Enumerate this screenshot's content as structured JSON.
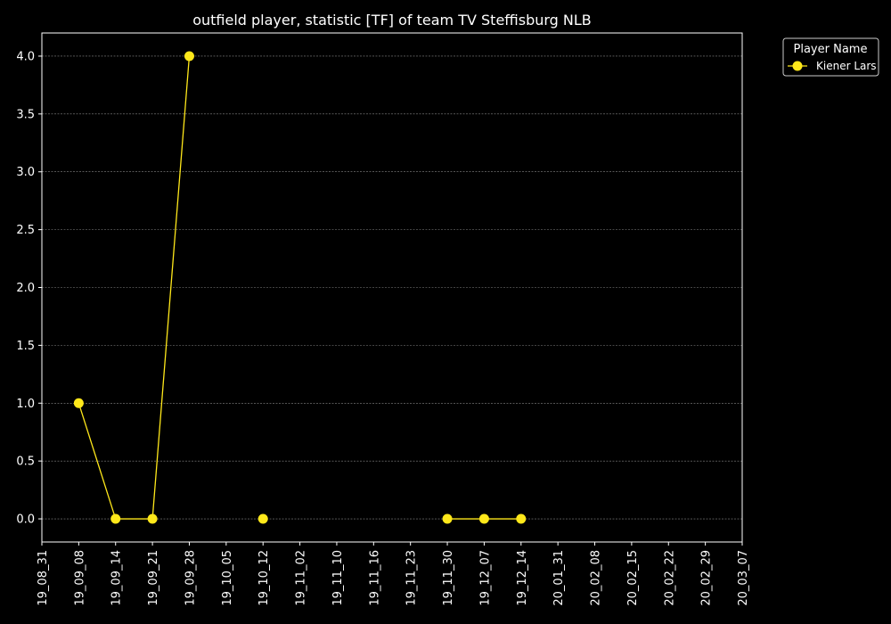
{
  "chart_data": {
    "type": "line",
    "title": "outfield player, statistic [TF] of team TV Steffisburg NLB",
    "xlabel": "",
    "ylabel": "",
    "x_tick_labels": [
      "19_08_31",
      "19_09_08",
      "19_09_14",
      "19_09_21",
      "19_09_28",
      "19_10_05",
      "19_10_12",
      "19_11_02",
      "19_11_10",
      "19_11_16",
      "19_11_23",
      "19_11_30",
      "19_12_07",
      "19_12_14",
      "20_01_31",
      "20_02_08",
      "20_02_15",
      "20_02_22",
      "20_02_29",
      "20_03_07"
    ],
    "y_ticks": [
      "0.0",
      "0.5",
      "1.0",
      "1.5",
      "2.0",
      "2.5",
      "3.0",
      "3.5",
      "4.0"
    ],
    "ylim": [
      -0.2,
      4.2
    ],
    "grid": true,
    "legend": {
      "title": "Player Name",
      "placement": "outside top-right"
    },
    "series": [
      {
        "name": "Kiener Lars",
        "color": "#ffe81a",
        "points": [
          {
            "x": "19_09_08",
            "y": 1.0
          },
          {
            "x": "19_09_14",
            "y": 0.0
          },
          {
            "x": "19_09_21",
            "y": 0.0
          },
          {
            "x": "19_09_28",
            "y": 4.0
          },
          {
            "x": "19_10_05",
            "y": null
          },
          {
            "x": "19_10_12",
            "y": 0.0
          },
          {
            "x": "19_11_02",
            "y": null
          },
          {
            "x": "19_11_30",
            "y": 0.0
          },
          {
            "x": "19_12_07",
            "y": 0.0
          },
          {
            "x": "19_12_14",
            "y": 0.0
          }
        ]
      }
    ]
  }
}
